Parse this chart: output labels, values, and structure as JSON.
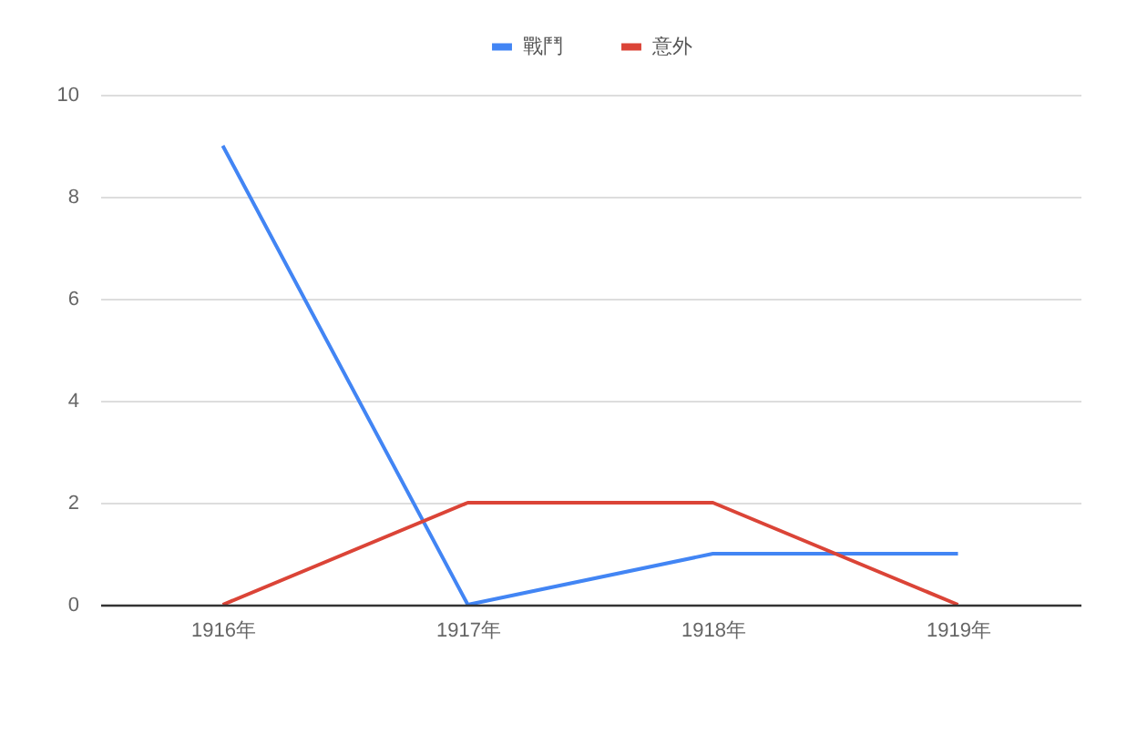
{
  "chart_data": {
    "type": "line",
    "categories": [
      "1916年",
      "1917年",
      "1918年",
      "1919年"
    ],
    "series": [
      {
        "name": "戰鬥",
        "color": "#4285f4",
        "values": [
          9,
          0,
          1,
          1
        ]
      },
      {
        "name": "意外",
        "color": "#db4437",
        "values": [
          0,
          2,
          2,
          0
        ]
      }
    ],
    "ylim": [
      0,
      10
    ],
    "yticks": [
      0,
      2,
      4,
      6,
      8,
      10
    ],
    "grid": "y",
    "legend": "top",
    "marker": "none",
    "line_style": "solid"
  }
}
